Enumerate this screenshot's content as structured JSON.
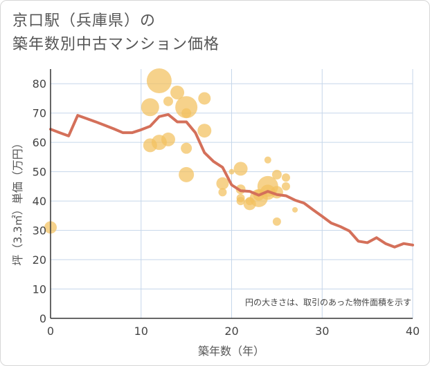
{
  "header": {
    "title_line1": "京口駅（兵庫県）の",
    "title_line2": "築年数別中古マンション価格"
  },
  "chart_data": {
    "type": "scatter",
    "xlabel": "築年数（年）",
    "ylabel": "坪（3.3㎡）単価（万円）",
    "xlim": [
      0,
      40
    ],
    "ylim": [
      0,
      85
    ],
    "xticks": [
      0,
      10,
      20,
      30,
      40
    ],
    "yticks": [
      0,
      10,
      20,
      30,
      40,
      50,
      60,
      70,
      80
    ],
    "grid": true,
    "annotation": "円の大きさは、取引のあった物件面積を示す",
    "colors": {
      "bubble": "#f3c15e",
      "line": "#d4705a",
      "grid": "#c5d6ea",
      "axis": "#333333"
    },
    "bubbles": [
      {
        "x": 0,
        "y": 31,
        "size": 9
      },
      {
        "x": 11,
        "y": 72,
        "size": 13
      },
      {
        "x": 11,
        "y": 59,
        "size": 10
      },
      {
        "x": 12,
        "y": 81,
        "size": 18
      },
      {
        "x": 12,
        "y": 60,
        "size": 11
      },
      {
        "x": 13,
        "y": 61,
        "size": 10
      },
      {
        "x": 13,
        "y": 74,
        "size": 7
      },
      {
        "x": 14,
        "y": 77,
        "size": 10
      },
      {
        "x": 15,
        "y": 72,
        "size": 16
      },
      {
        "x": 15,
        "y": 70,
        "size": 7
      },
      {
        "x": 15,
        "y": 58,
        "size": 8
      },
      {
        "x": 15,
        "y": 49,
        "size": 11
      },
      {
        "x": 17,
        "y": 75,
        "size": 9
      },
      {
        "x": 17,
        "y": 64,
        "size": 10
      },
      {
        "x": 19,
        "y": 46,
        "size": 9
      },
      {
        "x": 19,
        "y": 43,
        "size": 6
      },
      {
        "x": 20,
        "y": 50,
        "size": 4
      },
      {
        "x": 21,
        "y": 51,
        "size": 10
      },
      {
        "x": 21,
        "y": 44,
        "size": 7
      },
      {
        "x": 21,
        "y": 41,
        "size": 6
      },
      {
        "x": 21,
        "y": 40,
        "size": 6
      },
      {
        "x": 22,
        "y": 39,
        "size": 9
      },
      {
        "x": 22,
        "y": 40,
        "size": 6
      },
      {
        "x": 23,
        "y": 41,
        "size": 13
      },
      {
        "x": 23,
        "y": 42,
        "size": 8
      },
      {
        "x": 24,
        "y": 45,
        "size": 15
      },
      {
        "x": 24,
        "y": 43,
        "size": 11
      },
      {
        "x": 24,
        "y": 54,
        "size": 5
      },
      {
        "x": 25,
        "y": 49,
        "size": 7
      },
      {
        "x": 25,
        "y": 43,
        "size": 9
      },
      {
        "x": 25,
        "y": 33,
        "size": 6
      },
      {
        "x": 26,
        "y": 48,
        "size": 6
      },
      {
        "x": 26,
        "y": 45,
        "size": 6
      },
      {
        "x": 27,
        "y": 37,
        "size": 4
      }
    ],
    "trend": {
      "x": [
        0,
        1,
        2,
        3,
        4,
        5,
        6,
        7,
        8,
        9,
        10,
        11,
        12,
        13,
        14,
        15,
        16,
        17,
        18,
        19,
        20,
        21,
        22,
        23,
        24,
        25,
        26,
        27,
        28,
        29,
        30,
        31,
        32,
        33,
        34,
        35,
        36,
        37,
        38,
        39,
        40
      ],
      "y": [
        64.5,
        63.3,
        62.2,
        69.2,
        68.1,
        67.0,
        65.8,
        64.6,
        63.3,
        63.3,
        64.3,
        65.5,
        68.8,
        69.5,
        67.0,
        67.0,
        63.3,
        56.5,
        53.5,
        51.5,
        45.5,
        43.5,
        43.3,
        42.0,
        43.3,
        42.2,
        41.8,
        40.3,
        39.3,
        37.0,
        34.8,
        32.5,
        31.3,
        29.8,
        26.3,
        25.8,
        27.5,
        25.5,
        24.3,
        25.5,
        25.0
      ]
    }
  }
}
